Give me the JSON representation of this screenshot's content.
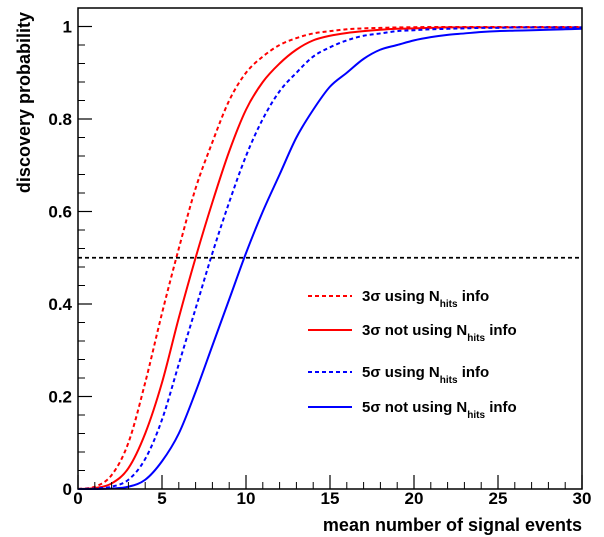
{
  "chart_data": {
    "type": "line",
    "xlabel": "mean number of signal events",
    "ylabel": "discovery probability",
    "xlim": [
      0,
      30
    ],
    "ylim": [
      0,
      1.04
    ],
    "x_ticks": [
      0,
      5,
      10,
      15,
      20,
      25,
      30
    ],
    "x_tick_labels": [
      "0",
      "5",
      "10",
      "15",
      "20",
      "25",
      "30"
    ],
    "y_ticks": [
      0,
      0.2,
      0.4,
      0.6,
      0.8,
      1
    ],
    "y_tick_labels": [
      "0",
      "0.2",
      "0.4",
      "0.6",
      "0.8",
      "1"
    ],
    "grid": false,
    "legend_position": "lower-right",
    "reference_line": {
      "y": 0.5,
      "style": "dashed",
      "color": "#000000"
    },
    "x": [
      0,
      1,
      2,
      3,
      4,
      5,
      6,
      7,
      8,
      9,
      10,
      11,
      12,
      13,
      14,
      15,
      16,
      17,
      18,
      19,
      20,
      21,
      22,
      23,
      24,
      25,
      26,
      27,
      28,
      29,
      30
    ],
    "series": [
      {
        "legend": {
          "prefix": "3σ using N",
          "sub": "hits",
          "suffix": " info"
        },
        "color": "#ff0000",
        "dash": "dashed",
        "values": [
          0,
          0.005,
          0.03,
          0.1,
          0.23,
          0.38,
          0.52,
          0.65,
          0.75,
          0.84,
          0.9,
          0.935,
          0.96,
          0.975,
          0.985,
          0.99,
          0.994,
          0.996,
          0.997,
          0.998,
          0.9985,
          0.999,
          0.999,
          0.999,
          0.999,
          0.999,
          0.999,
          0.999,
          0.999,
          0.999,
          0.999
        ]
      },
      {
        "legend": {
          "prefix": "3σ not using N",
          "sub": "hits",
          "suffix": " info"
        },
        "color": "#ff0000",
        "dash": "solid",
        "values": [
          0,
          0.002,
          0.012,
          0.045,
          0.12,
          0.23,
          0.37,
          0.5,
          0.62,
          0.73,
          0.82,
          0.88,
          0.92,
          0.95,
          0.97,
          0.98,
          0.986,
          0.99,
          0.993,
          0.995,
          0.996,
          0.997,
          0.998,
          0.998,
          0.998,
          0.998,
          0.998,
          0.998,
          0.998,
          0.998,
          0.998
        ]
      },
      {
        "legend": {
          "prefix": "5σ using N",
          "sub": "hits",
          "suffix": " info"
        },
        "color": "#0000ff",
        "dash": "dashed",
        "values": [
          0,
          0.001,
          0.005,
          0.02,
          0.065,
          0.15,
          0.27,
          0.39,
          0.51,
          0.62,
          0.72,
          0.8,
          0.86,
          0.9,
          0.935,
          0.955,
          0.97,
          0.98,
          0.985,
          0.99,
          0.992,
          0.994,
          0.995,
          0.996,
          0.997,
          0.997,
          0.998,
          0.998,
          0.998,
          0.998,
          0.998
        ]
      },
      {
        "legend": {
          "prefix": "5σ not using N",
          "sub": "hits",
          "suffix": " info"
        },
        "color": "#0000ff",
        "dash": "solid",
        "values": [
          0,
          0,
          0.001,
          0.005,
          0.02,
          0.06,
          0.12,
          0.21,
          0.31,
          0.41,
          0.51,
          0.6,
          0.68,
          0.76,
          0.82,
          0.87,
          0.9,
          0.93,
          0.95,
          0.96,
          0.97,
          0.977,
          0.982,
          0.985,
          0.988,
          0.99,
          0.991,
          0.992,
          0.993,
          0.994,
          0.995
        ]
      }
    ]
  }
}
